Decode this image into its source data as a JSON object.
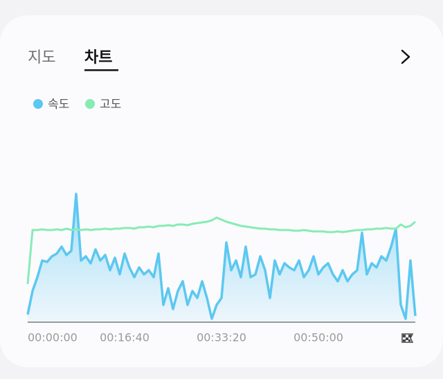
{
  "tabs": [
    "지도",
    "차트"
  ],
  "chart_data": {
    "type": "line",
    "x": [
      0,
      50,
      100,
      150,
      200,
      250,
      300,
      350,
      400,
      450,
      500,
      550,
      600,
      650,
      700,
      750,
      800,
      850,
      900,
      950,
      1000,
      1050,
      1100,
      1150,
      1200,
      1250,
      1300,
      1350,
      1400,
      1450,
      1500,
      1550,
      1600,
      1650,
      1700,
      1750,
      1800,
      1850,
      1900,
      1950,
      2000,
      2050,
      2100,
      2150,
      2200,
      2250,
      2300,
      2350,
      2400,
      2450,
      2500,
      2550,
      2600,
      2650,
      2700,
      2750,
      2800,
      2850,
      2900,
      2950,
      3000,
      3050,
      3100,
      3150,
      3200,
      3250,
      3300,
      3350,
      3400,
      3450,
      3500,
      3550,
      3600,
      3650,
      3700,
      3750,
      3800,
      3850,
      3900,
      3950,
      4000
    ],
    "series": [
      {
        "name": "속도",
        "color": "#5bc8f0",
        "area": true,
        "values": [
          5,
          22,
          32,
          44,
          43,
          47,
          49,
          54,
          48,
          51,
          92,
          44,
          47,
          42,
          52,
          44,
          48,
          37,
          46,
          34,
          49,
          39,
          32,
          39,
          34,
          37,
          32,
          49,
          12,
          24,
          9,
          22,
          29,
          12,
          22,
          17,
          29,
          17,
          2,
          12,
          17,
          57,
          37,
          44,
          32,
          54,
          32,
          34,
          47,
          37,
          17,
          44,
          34,
          42,
          39,
          37,
          44,
          32,
          37,
          47,
          34,
          39,
          42,
          34,
          29,
          37,
          29,
          34,
          37,
          64,
          34,
          42,
          39,
          47,
          44,
          54,
          67,
          12,
          2,
          44,
          4
        ]
      },
      {
        "name": "고도",
        "color": "#86ecb4",
        "values": [
          27,
          66,
          66,
          66.5,
          66,
          66,
          66.5,
          66,
          67,
          66,
          66.5,
          66,
          66.5,
          66,
          66.5,
          66.5,
          67,
          66.5,
          67,
          67,
          67.5,
          67.5,
          67,
          68,
          68,
          68.5,
          68,
          69,
          69,
          69.5,
          69,
          70,
          70,
          69.5,
          70.5,
          71,
          71.5,
          72,
          73,
          75,
          73.5,
          72,
          71,
          70,
          69,
          68.5,
          68,
          67.5,
          67,
          67,
          66.5,
          66.5,
          66,
          66,
          66,
          65.5,
          65.5,
          66,
          65.5,
          65,
          65,
          65,
          64.5,
          64.5,
          65,
          64.5,
          65,
          65.5,
          66,
          66,
          66.5,
          66.5,
          67,
          67,
          67.5,
          67,
          67,
          70,
          68,
          69,
          72
        ]
      }
    ],
    "xlim": [
      0,
      4000
    ],
    "ylim": [
      0,
      100
    ],
    "xticks": [
      {
        "value": 0,
        "label": "00:00:00"
      },
      {
        "value": 1000,
        "label": "00:16:40"
      },
      {
        "value": 2000,
        "label": "00:33:20"
      },
      {
        "value": 3000,
        "label": "00:50:00"
      }
    ]
  }
}
